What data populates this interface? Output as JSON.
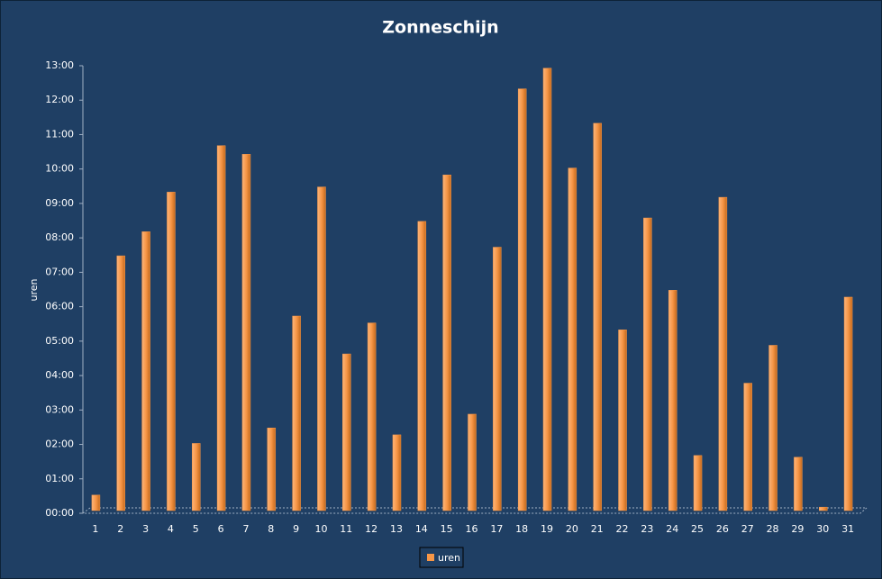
{
  "chart_data": {
    "type": "bar",
    "title": "Zonneschijn",
    "y_label": "uren",
    "categories": [
      "1",
      "2",
      "3",
      "4",
      "5",
      "6",
      "7",
      "8",
      "9",
      "10",
      "11",
      "12",
      "13",
      "14",
      "15",
      "16",
      "17",
      "18",
      "19",
      "20",
      "21",
      "22",
      "23",
      "24",
      "25",
      "26",
      "27",
      "28",
      "29",
      "30",
      "31"
    ],
    "series": [
      {
        "name": "uren",
        "color": "#f79646",
        "values": [
          0.45,
          7.4,
          8.1,
          9.25,
          1.95,
          10.6,
          10.35,
          2.4,
          5.65,
          9.4,
          4.55,
          5.45,
          2.2,
          8.4,
          9.75,
          2.8,
          7.65,
          12.25,
          12.85,
          9.95,
          11.25,
          5.25,
          8.5,
          6.4,
          1.6,
          9.1,
          3.7,
          4.8,
          1.55,
          0.1,
          6.2
        ]
      }
    ],
    "ylim": [
      0,
      13
    ],
    "yticks": [
      {
        "value": 0,
        "label": "00:00"
      },
      {
        "value": 1,
        "label": "01:00"
      },
      {
        "value": 2,
        "label": "02:00"
      },
      {
        "value": 3,
        "label": "03:00"
      },
      {
        "value": 4,
        "label": "04:00"
      },
      {
        "value": 5,
        "label": "05:00"
      },
      {
        "value": 6,
        "label": "06:00"
      },
      {
        "value": 7,
        "label": "07:00"
      },
      {
        "value": 8,
        "label": "08:00"
      },
      {
        "value": 9,
        "label": "09:00"
      },
      {
        "value": 10,
        "label": "10:00"
      },
      {
        "value": 11,
        "label": "11:00"
      },
      {
        "value": 12,
        "label": "12:00"
      },
      {
        "value": 13,
        "label": "13:00"
      }
    ],
    "legend": "bottom"
  }
}
